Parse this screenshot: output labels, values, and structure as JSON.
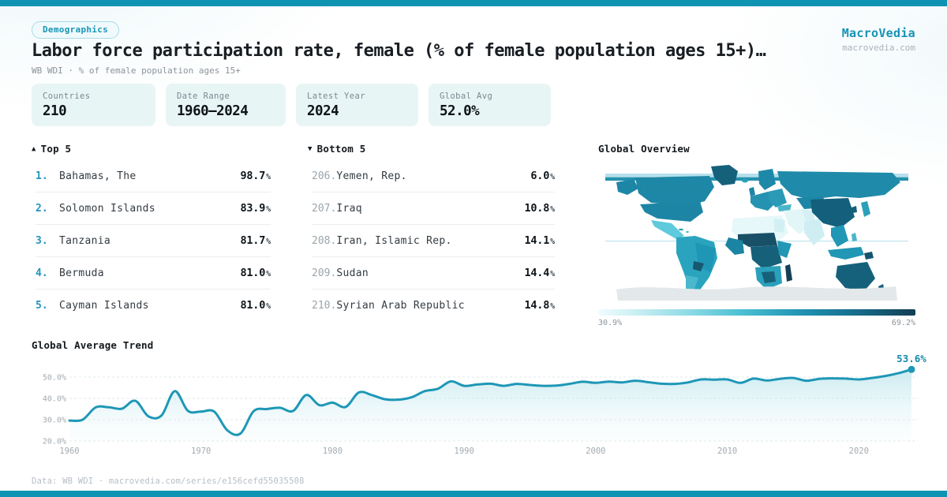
{
  "header": {
    "badge": "Demographics",
    "title": "Labor force participation rate, female (% of female population ages 15+)…",
    "subtitle": "WB WDI · % of female population ages 15+",
    "brand": "MacroVedia",
    "brand_url": "macrovedia.com"
  },
  "stats": [
    {
      "label": "Countries",
      "value": "210"
    },
    {
      "label": "Date Range",
      "value": "1960—2024"
    },
    {
      "label": "Latest Year",
      "value": "2024"
    },
    {
      "label": "Global Avg",
      "value": "52.0%"
    }
  ],
  "top5": {
    "arrow": "▲",
    "label": "Top 5",
    "rows": [
      {
        "rank": "1.",
        "name": "Bahamas, The",
        "value": "98.7",
        "unit": "%"
      },
      {
        "rank": "2.",
        "name": "Solomon Islands",
        "value": "83.9",
        "unit": "%"
      },
      {
        "rank": "3.",
        "name": "Tanzania",
        "value": "81.7",
        "unit": "%"
      },
      {
        "rank": "4.",
        "name": "Bermuda",
        "value": "81.0",
        "unit": "%"
      },
      {
        "rank": "5.",
        "name": "Cayman Islands",
        "value": "81.0",
        "unit": "%"
      }
    ]
  },
  "bottom5": {
    "arrow": "▼",
    "label": "Bottom 5",
    "rows": [
      {
        "rank": "206.",
        "name": "Yemen, Rep.",
        "value": "6.0",
        "unit": "%"
      },
      {
        "rank": "207.",
        "name": "Iraq",
        "value": "10.8",
        "unit": "%"
      },
      {
        "rank": "208.",
        "name": "Iran, Islamic Rep.",
        "value": "14.1",
        "unit": "%"
      },
      {
        "rank": "209.",
        "name": "Sudan",
        "value": "14.4",
        "unit": "%"
      },
      {
        "rank": "210.",
        "name": "Syrian Arab Republic",
        "value": "14.8",
        "unit": "%"
      }
    ]
  },
  "footer": {
    "text": "Data: WB WDI · macrovedia.com/series/e156cefd55035508"
  },
  "colors": {
    "accent": "#0e93b2",
    "line": "#1e97b6",
    "brand_text": "#1693b4",
    "map_dark": "#15617c",
    "map_mid": "#1e88a8",
    "map_light": "#5ecadb",
    "map_pale": "#e6f8f9"
  },
  "chart_data": [
    {
      "type": "area",
      "title": "Global Average Trend",
      "x_start": 1960,
      "x_end": 2024,
      "values": [
        29.6,
        30.0,
        35.8,
        35.8,
        35.2,
        38.9,
        31.6,
        32.0,
        43.4,
        34.2,
        33.8,
        33.8,
        25.0,
        23.5,
        34.0,
        35.0,
        35.6,
        34.1,
        41.6,
        36.8,
        38.0,
        36.0,
        42.8,
        41.5,
        39.6,
        39.4,
        40.5,
        43.4,
        44.5,
        48.0,
        45.9,
        46.5,
        46.9,
        45.9,
        46.8,
        46.3,
        45.9,
        46.0,
        46.8,
        47.8,
        47.3,
        47.9,
        47.5,
        48.3,
        47.6,
        46.9,
        46.8,
        47.5,
        48.9,
        48.8,
        48.9,
        47.3,
        49.3,
        48.4,
        49.2,
        49.6,
        48.3,
        49.2,
        49.4,
        49.3,
        48.9,
        49.6,
        50.5,
        51.8,
        53.6
      ],
      "end_label": "53.6%",
      "x_ticks": [
        1960,
        1970,
        1980,
        1990,
        2000,
        2010,
        2020
      ],
      "y_ticks": [
        50,
        40,
        30,
        20
      ],
      "y_tick_labels": [
        "50.0%",
        "40.0%",
        "30.0%",
        "20.0%"
      ],
      "ylim": [
        20,
        57
      ],
      "grid": "dashed",
      "xlabel": "",
      "ylabel": "",
      "legend_position": "none"
    },
    {
      "type": "heatmap",
      "subtype": "world-choropleth",
      "title": "Global Overview",
      "legend_min_label": "30.9%",
      "legend_max_label": "69.2%",
      "colorscale": [
        "#f2fcfd",
        "#c9eff3",
        "#8fdbe6",
        "#4cc0d2",
        "#2397b6",
        "#16708e",
        "#123f53"
      ]
    }
  ]
}
